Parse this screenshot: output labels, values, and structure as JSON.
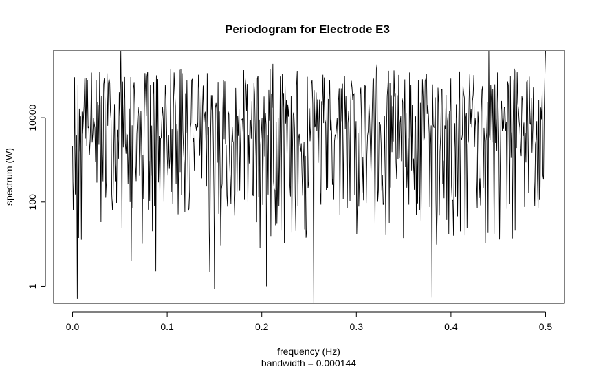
{
  "chart_data": {
    "type": "line",
    "title": "Periodogram for Electrode E3",
    "xlabel": "frequency (Hz)",
    "xlabel2": "bandwidth = 0.000144",
    "ylabel": "spectrum (W)",
    "y_scale": "log",
    "xlim": [
      -0.02,
      0.52
    ],
    "ylim_log10": [
      -0.4,
      5.6
    ],
    "x_ticks": [
      0.0,
      0.1,
      0.2,
      0.3,
      0.4,
      0.5
    ],
    "x_tick_labels": [
      "0.0",
      "0.1",
      "0.2",
      "0.3",
      "0.4",
      "0.5"
    ],
    "y_ticks": [
      1,
      100,
      10000
    ],
    "y_tick_labels": [
      "1",
      "100",
      "10000"
    ],
    "grid": false,
    "legend": "none",
    "series_color": "#000000",
    "x_range": [
      0.0,
      0.5
    ],
    "approx_points": 700,
    "typical_level": 10000,
    "notable_points": [
      {
        "x": 0.005,
        "y": 0.5
      },
      {
        "x": 0.051,
        "y": 400000
      },
      {
        "x": 0.062,
        "y": 4
      },
      {
        "x": 0.088,
        "y": 2.3
      },
      {
        "x": 0.145,
        "y": 2.2
      },
      {
        "x": 0.15,
        "y": 0.85
      },
      {
        "x": 0.205,
        "y": 1.0
      },
      {
        "x": 0.255,
        "y": 0.4
      },
      {
        "x": 0.38,
        "y": 0.55
      },
      {
        "x": 0.44,
        "y": 400000
      },
      {
        "x": 0.5,
        "y": 400000
      }
    ]
  }
}
